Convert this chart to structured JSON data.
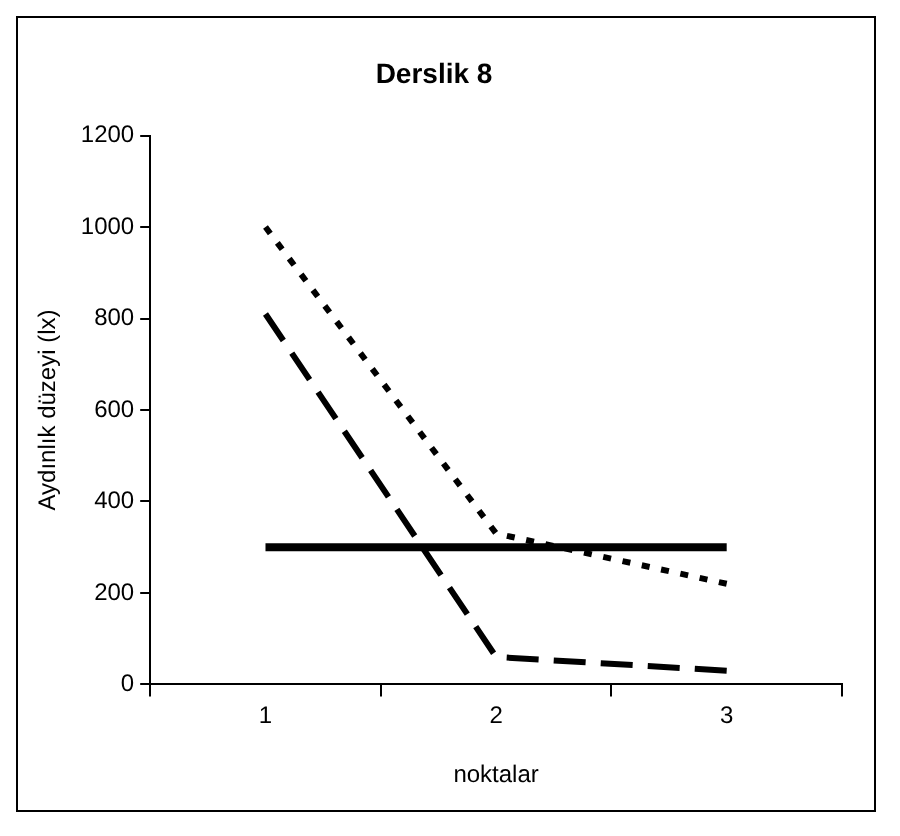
{
  "chart_data": {
    "type": "line",
    "title": "Derslik 8",
    "xlabel": "noktalar",
    "ylabel": "Aydınlık düzeyi (lx)",
    "categories": [
      "1",
      "2",
      "3"
    ],
    "series": [
      {
        "color": "#000000",
        "line_style": "dotted",
        "values": [
          1000,
          330,
          220
        ]
      },
      {
        "color": "#000000",
        "line_style": "dashed",
        "values": [
          810,
          60,
          30
        ]
      },
      {
        "color": "#000000",
        "line_style": "solid",
        "values": [
          300,
          300,
          300
        ]
      }
    ],
    "ylim": [
      0,
      1200
    ],
    "yticks": [
      0,
      200,
      400,
      600,
      800,
      1000,
      1200
    ],
    "grid": false,
    "legend": false,
    "marker": "none"
  }
}
